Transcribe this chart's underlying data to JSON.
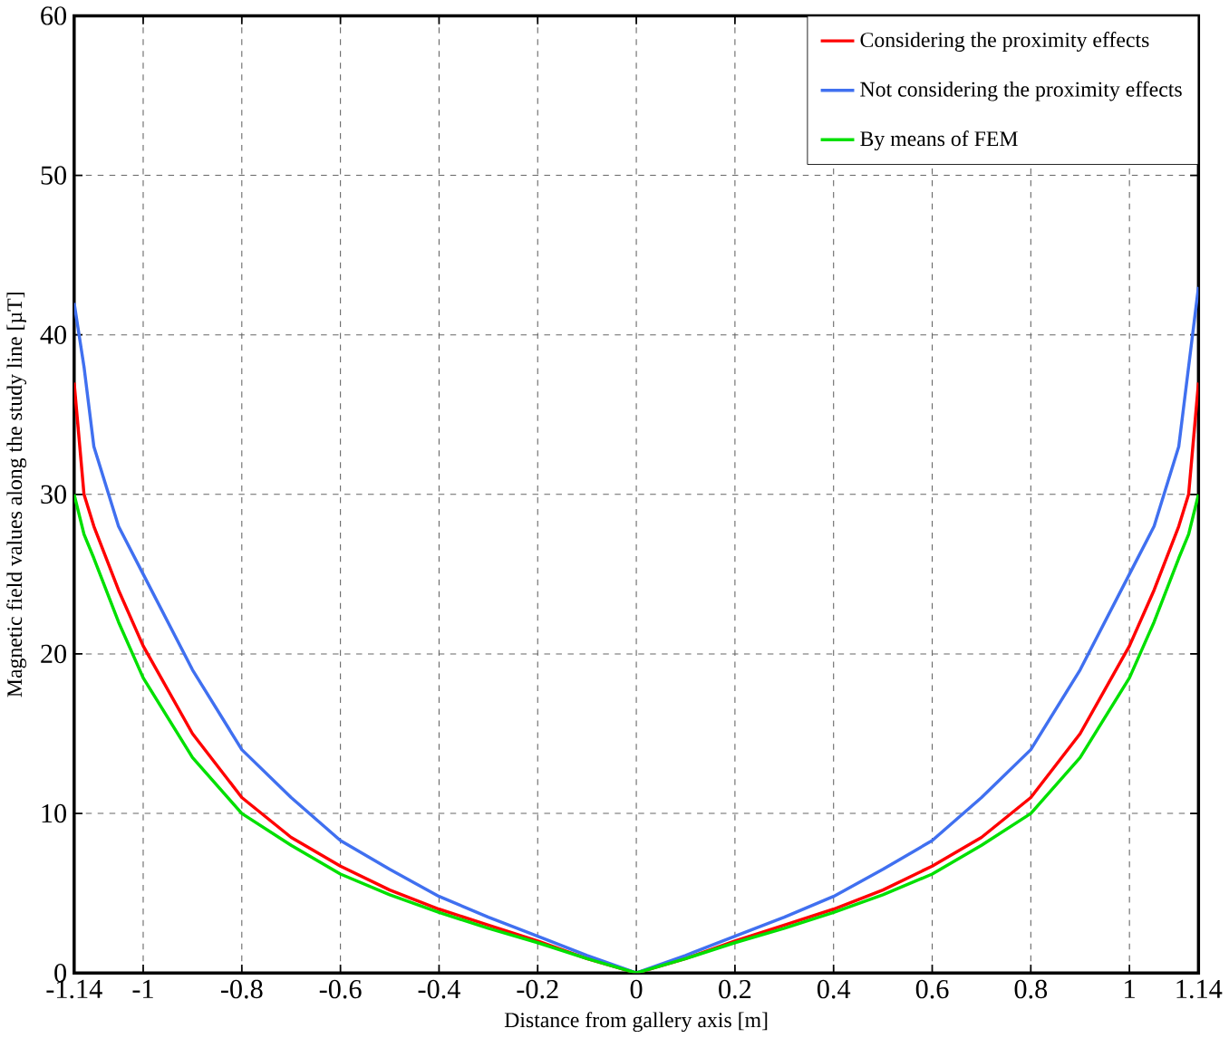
{
  "chart_data": {
    "type": "line",
    "xlabel": "Distance from gallery axis [m]",
    "ylabel": "Magnetic field values along the study line [µT]",
    "xlim": [
      -1.14,
      1.14
    ],
    "ylim": [
      0,
      60
    ],
    "xticks": [
      -1.14,
      -1,
      -0.8,
      -0.6,
      -0.4,
      -0.2,
      0,
      0.2,
      0.4,
      0.6,
      0.8,
      1,
      1.14
    ],
    "yticks": [
      0,
      10,
      20,
      30,
      40,
      50,
      60
    ],
    "grid": true,
    "legend": "top right",
    "line_style": "solid",
    "marker": "none",
    "x": [
      -1.14,
      -1.12,
      -1.1,
      -1.05,
      -1,
      -0.9,
      -0.8,
      -0.7,
      -0.6,
      -0.5,
      -0.4,
      -0.3,
      -0.2,
      -0.1,
      0,
      0.1,
      0.2,
      0.3,
      0.4,
      0.5,
      0.6,
      0.7,
      0.8,
      0.9,
      1,
      1.05,
      1.1,
      1.12,
      1.14
    ],
    "series": [
      {
        "name": "Considering the proximity effects",
        "color": "#ff0000",
        "values": [
          37,
          30,
          28,
          24,
          20.5,
          15,
          11,
          8.5,
          6.7,
          5.2,
          4,
          3,
          2,
          0.9,
          0,
          0.9,
          2,
          3,
          4,
          5.2,
          6.7,
          8.5,
          11,
          15,
          20.5,
          24,
          28,
          30,
          37
        ]
      },
      {
        "name": "Not considering the proximity effects",
        "color": "#4070f0",
        "values": [
          42,
          38,
          33,
          28,
          25,
          19,
          14,
          11,
          8.3,
          6.5,
          4.8,
          3.5,
          2.3,
          1.1,
          0,
          1.1,
          2.3,
          3.5,
          4.8,
          6.5,
          8.3,
          11,
          14,
          19,
          25,
          28,
          33,
          38,
          43
        ]
      },
      {
        "name": "By means of FEM",
        "color": "#00e000",
        "values": [
          30,
          27.5,
          26,
          22,
          18.5,
          13.5,
          10,
          8,
          6.2,
          4.9,
          3.8,
          2.8,
          1.9,
          0.9,
          0,
          0.9,
          1.9,
          2.8,
          3.8,
          4.9,
          6.2,
          8,
          10,
          13.5,
          18.5,
          22,
          26,
          27.5,
          30
        ]
      }
    ]
  }
}
